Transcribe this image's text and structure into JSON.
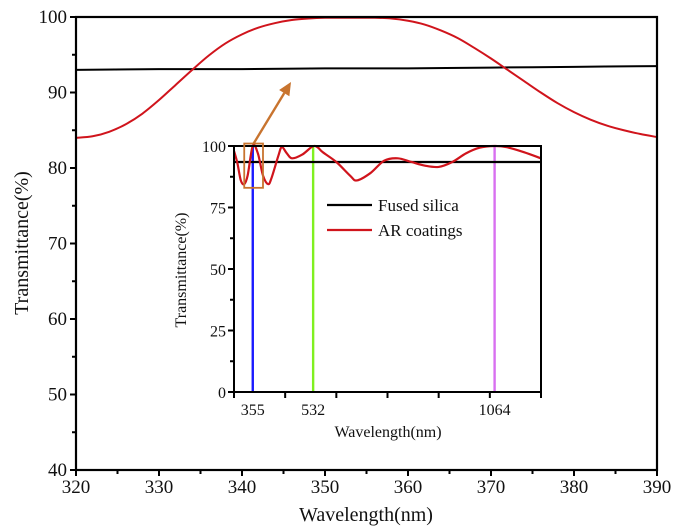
{
  "chart_data": [
    {
      "id": "main",
      "type": "line",
      "title": "",
      "xlabel": "Wavelength(nm)",
      "ylabel": "Transmittance(%)",
      "xlim": [
        320,
        390
      ],
      "ylim": [
        40,
        100
      ],
      "xticks": [
        320,
        330,
        340,
        350,
        360,
        370,
        380,
        390
      ],
      "yticks": [
        40,
        50,
        60,
        70,
        80,
        90,
        100
      ],
      "grid": false,
      "series": [
        {
          "name": "Fused silica",
          "color": "#000000",
          "x": [
            320,
            330,
            340,
            350,
            360,
            370,
            380,
            390
          ],
          "y": [
            93.0,
            93.1,
            93.1,
            93.2,
            93.2,
            93.3,
            93.4,
            93.5
          ]
        },
        {
          "name": "AR coatings",
          "color": "#d0141c",
          "x": [
            320,
            322,
            324,
            326,
            328,
            330,
            332,
            334,
            336,
            338,
            340,
            342,
            344,
            346,
            348,
            350,
            352,
            354,
            356,
            358,
            360,
            362,
            364,
            366,
            368,
            370,
            372,
            374,
            376,
            378,
            380,
            382,
            384,
            386,
            388,
            390
          ],
          "y": [
            84.0,
            84.2,
            84.8,
            85.8,
            87.2,
            89.0,
            91.0,
            93.0,
            94.9,
            96.5,
            97.7,
            98.6,
            99.2,
            99.6,
            99.8,
            99.9,
            99.9,
            99.9,
            99.9,
            99.8,
            99.5,
            99.0,
            98.2,
            97.2,
            95.9,
            94.5,
            93.0,
            91.5,
            90.0,
            88.6,
            87.4,
            86.4,
            85.6,
            85.0,
            84.5,
            84.1
          ]
        }
      ],
      "annotations": [
        {
          "type": "arrow",
          "color": "#c8742f",
          "description": "arrow from inset zoom box to main plot"
        }
      ]
    },
    {
      "id": "inset",
      "type": "line",
      "title": "",
      "xlabel": "Wavelength(nm)",
      "ylabel": "Transmittance(%)",
      "xlim": [
        300,
        1200
      ],
      "ylim": [
        0,
        100
      ],
      "xtick_positions": [
        300,
        450,
        600,
        750,
        900,
        1050,
        1200
      ],
      "xtick_labels": [
        {
          "value": 355,
          "label": "355"
        },
        {
          "value": 532,
          "label": "532"
        },
        {
          "value": 1064,
          "label": "1064"
        }
      ],
      "yticks": [
        0,
        25,
        50,
        75,
        100
      ],
      "grid": false,
      "legend": {
        "position": "center",
        "entries": [
          {
            "label": "Fused silica",
            "color": "#000000"
          },
          {
            "label": "AR coatings",
            "color": "#d0141c"
          }
        ]
      },
      "series": [
        {
          "name": "Fused silica",
          "color": "#000000",
          "x": [
            300,
            1200
          ],
          "y": [
            93.5,
            93.5
          ]
        },
        {
          "name": "AR coatings",
          "color": "#d0141c",
          "x": [
            300,
            310,
            320,
            330,
            340,
            355,
            370,
            385,
            400,
            410,
            430,
            440,
            455,
            470,
            500,
            530,
            545,
            560,
            600,
            640,
            660,
            700,
            740,
            780,
            820,
            860,
            900,
            940,
            980,
            1020,
            1064,
            1100,
            1150,
            1200
          ],
          "y": [
            98.0,
            93.0,
            86.0,
            84.5,
            88.0,
            100.0,
            97.0,
            88.0,
            84.5,
            87.0,
            96.0,
            99.5,
            97.0,
            95.0,
            96.5,
            99.8,
            99.5,
            97.5,
            93.5,
            88.0,
            86.0,
            89.0,
            94.0,
            95.0,
            93.5,
            92.0,
            91.5,
            93.5,
            97.0,
            99.3,
            100.0,
            99.5,
            97.5,
            95.0
          ]
        }
      ],
      "marker_lines": [
        {
          "wavelength": 355,
          "color": "#1a1aff"
        },
        {
          "wavelength": 532,
          "color": "#80f020"
        },
        {
          "wavelength": 1064,
          "color": "#d870f0"
        }
      ],
      "zoom_box": {
        "x_range": [
          330,
          385
        ],
        "y_range": [
          83,
          101
        ],
        "color": "#c8742f"
      }
    }
  ]
}
